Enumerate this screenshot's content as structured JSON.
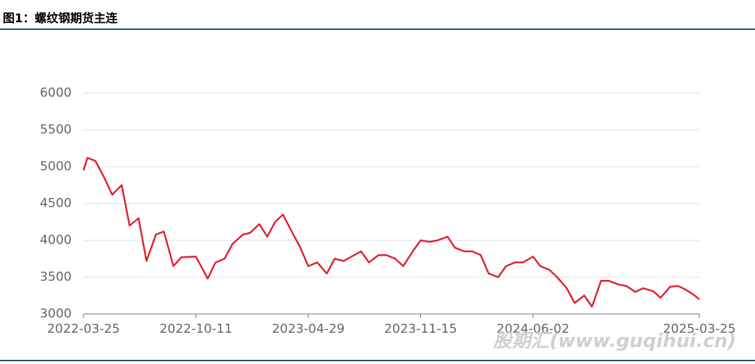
{
  "chart_data": {
    "type": "line",
    "title": "图1：螺纹钢期货主连",
    "watermark": "股期汇(www.guqihui.cn)",
    "x": [
      "2022-03-25",
      "2022-04-01",
      "2022-04-15",
      "2022-05-01",
      "2022-05-15",
      "2022-06-01",
      "2022-06-15",
      "2022-07-01",
      "2022-07-15",
      "2022-08-01",
      "2022-08-15",
      "2022-09-01",
      "2022-09-15",
      "2022-10-11",
      "2022-11-01",
      "2022-11-15",
      "2022-12-01",
      "2022-12-15",
      "2023-01-03",
      "2023-01-15",
      "2023-02-01",
      "2023-02-15",
      "2023-03-01",
      "2023-03-15",
      "2023-04-01",
      "2023-04-15",
      "2023-04-29",
      "2023-05-15",
      "2023-06-01",
      "2023-06-15",
      "2023-07-01",
      "2023-07-15",
      "2023-08-01",
      "2023-08-15",
      "2023-09-01",
      "2023-09-15",
      "2023-10-01",
      "2023-10-15",
      "2023-11-01",
      "2023-11-15",
      "2023-12-01",
      "2023-12-15",
      "2024-01-02",
      "2024-01-15",
      "2024-02-01",
      "2024-02-15",
      "2024-03-01",
      "2024-03-15",
      "2024-04-01",
      "2024-04-15",
      "2024-05-01",
      "2024-05-15",
      "2024-06-02",
      "2024-06-15",
      "2024-07-01",
      "2024-07-15",
      "2024-08-01",
      "2024-08-15",
      "2024-09-01",
      "2024-09-15",
      "2024-10-01",
      "2024-10-15",
      "2024-11-01",
      "2024-11-15",
      "2024-12-01",
      "2024-12-15",
      "2025-01-02",
      "2025-01-15",
      "2025-02-01",
      "2025-02-15",
      "2025-03-01",
      "2025-03-15",
      "2025-03-25"
    ],
    "series": [
      {
        "name": "螺纹钢期货主连",
        "color": "#e0202f",
        "values": [
          4950,
          5120,
          5080,
          4850,
          4620,
          4750,
          4200,
          4300,
          3720,
          4080,
          4120,
          3650,
          3770,
          3780,
          3480,
          3700,
          3750,
          3950,
          4080,
          4100,
          4220,
          4050,
          4250,
          4350,
          4100,
          3900,
          3650,
          3700,
          3550,
          3750,
          3720,
          3780,
          3850,
          3700,
          3800,
          3800,
          3750,
          3650,
          3850,
          4000,
          3980,
          4000,
          4050,
          3900,
          3850,
          3850,
          3800,
          3550,
          3500,
          3650,
          3700,
          3700,
          3780,
          3650,
          3600,
          3500,
          3350,
          3150,
          3250,
          3100,
          3450,
          3450,
          3400,
          3380,
          3300,
          3350,
          3310,
          3220,
          3370,
          3380,
          3330,
          3260,
          3200
        ]
      }
    ],
    "xlim": [
      "2022-03-25",
      "2025-03-25"
    ],
    "xticks": [
      "2022-03-25",
      "2022-10-11",
      "2023-04-29",
      "2023-11-15",
      "2024-06-02",
      "2025-03-25"
    ],
    "ylim": [
      3000,
      6000
    ],
    "yticks": [
      3000,
      3500,
      4000,
      4500,
      5000,
      5500,
      6000
    ],
    "grid": true
  }
}
